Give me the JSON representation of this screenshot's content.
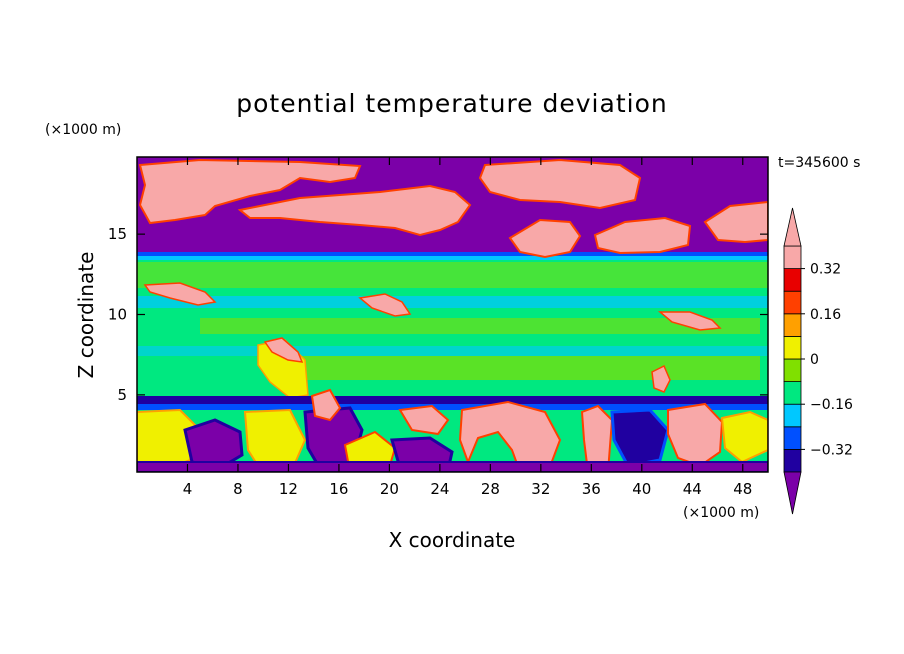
{
  "chart_data": {
    "type": "heatmap",
    "title": "potential temperature deviation",
    "xlabel": "X coordinate",
    "ylabel": "Z coordinate",
    "x_unit": "(×1000 m)",
    "y_unit": "(×1000 m)",
    "time_label": "t=345600 s",
    "xlim": [
      0,
      50
    ],
    "ylim": [
      0.2,
      19.8
    ],
    "x_ticks": [
      4,
      8,
      12,
      16,
      20,
      24,
      28,
      32,
      36,
      40,
      44,
      48
    ],
    "x_tick_labels": [
      "4",
      "8",
      "12",
      "16",
      "20",
      "24",
      "28",
      "32",
      "36",
      "40",
      "44",
      "48"
    ],
    "y_ticks": [
      5,
      10,
      15
    ],
    "y_tick_labels": [
      "5",
      "10",
      "15"
    ],
    "colorbar": {
      "levels": [
        -0.4,
        -0.32,
        -0.24,
        -0.16,
        -0.08,
        0,
        0.08,
        0.16,
        0.24,
        0.32,
        0.4
      ],
      "colors": [
        "#7b00a8",
        "#2000a0",
        "#0050ff",
        "#00c8ff",
        "#00e880",
        "#80e000",
        "#f0f000",
        "#ffa000",
        "#ff4000",
        "#e80000",
        "#f8a8a8"
      ],
      "tick_values": [
        0.32,
        0.16,
        0,
        -0.16,
        -0.32
      ],
      "tick_labels": [
        "0.32",
        "0.16",
        "0",
        "−0.16",
        "−0.32"
      ],
      "extend": "both"
    }
  }
}
